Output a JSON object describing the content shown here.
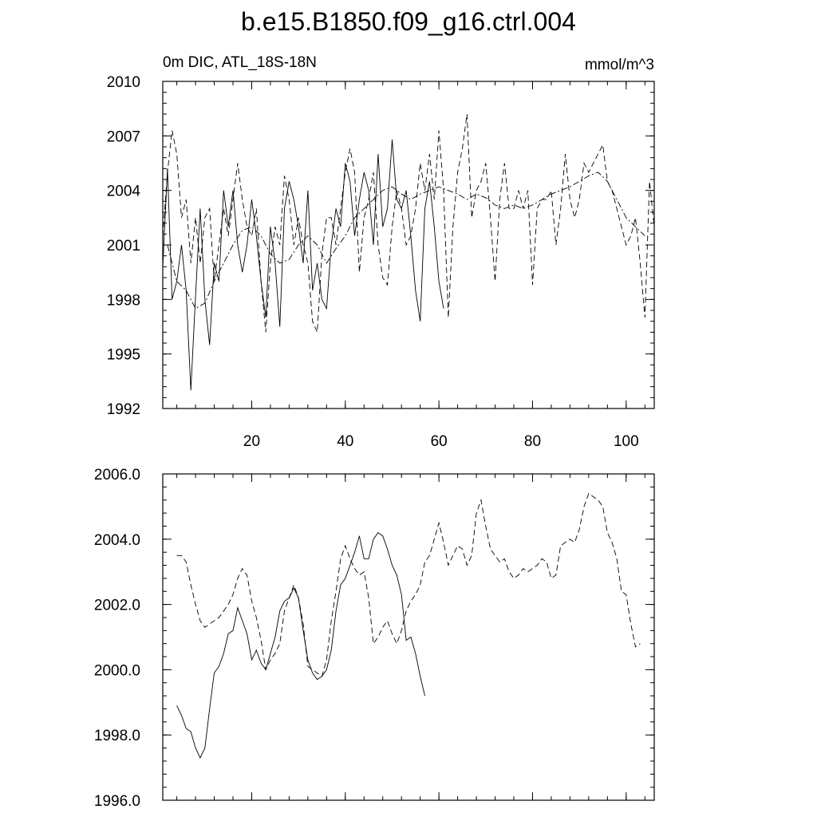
{
  "figure_title": "b.e15.B1850.f09_g16.ctrl.004",
  "chart_data": [
    {
      "type": "line",
      "subtitle_left": "0m DIC, ATL_18S-18N",
      "subtitle_right": "mmol/m^3",
      "xlim": [
        1,
        106
      ],
      "ylim": [
        1992,
        2010
      ],
      "xticks": [
        20,
        40,
        60,
        80,
        100
      ],
      "xtick_labels": [
        "20",
        "40",
        "60",
        "80",
        "100"
      ],
      "yticks": [
        1992,
        1995,
        1998,
        2001,
        2004,
        2007,
        2010
      ],
      "ytick_labels": [
        "1992",
        "1995",
        "1998",
        "2001",
        "2004",
        "2007",
        "2010"
      ],
      "grid": false,
      "series": [
        {
          "style": "solid",
          "x": [
            1,
            2,
            3,
            4,
            5,
            6,
            7,
            8,
            9,
            10,
            11,
            12,
            13,
            14,
            15,
            16,
            17,
            18,
            19,
            20,
            21,
            22,
            23,
            24,
            25,
            26,
            27,
            28,
            29,
            30,
            31,
            32,
            33,
            34,
            35,
            36,
            37,
            38,
            39,
            40,
            41,
            42,
            43,
            44,
            45,
            46,
            47,
            48,
            49,
            50,
            51,
            52,
            53,
            54,
            55,
            56,
            57,
            58,
            59,
            60,
            61
          ],
          "y": [
            1999.8,
            2005.2,
            1998.0,
            1999.0,
            2001.0,
            1998.5,
            1993.0,
            1998.2,
            2003.0,
            1998.0,
            1995.5,
            2000.0,
            1999.0,
            2004.0,
            2002.0,
            2004.0,
            2001.0,
            1999.5,
            2001.0,
            2003.5,
            2001.5,
            1999.0,
            1997.0,
            2002.0,
            2000.0,
            1996.5,
            2003.0,
            2004.5,
            2003.5,
            2002.0,
            2000.0,
            2004.0,
            1998.5,
            2000.0,
            1998.0,
            1997.5,
            2001.0,
            2003.0,
            2002.0,
            2005.5,
            2004.5,
            2001.5,
            2003.5,
            2005.0,
            2004.0,
            2001.0,
            2006.0,
            2002.0,
            2003.0,
            2006.8,
            2003.5,
            2003.0,
            2004.0,
            2001.5,
            1998.5,
            1996.8,
            2003.0,
            2004.5,
            2002.0,
            1999.0,
            1997.5
          ]
        },
        {
          "style": "dashed",
          "x": [
            1,
            2,
            3,
            4,
            5,
            6,
            7,
            8,
            9,
            10,
            11,
            12,
            13,
            14,
            15,
            16,
            17,
            18,
            19,
            20,
            21,
            22,
            23,
            24,
            25,
            26,
            27,
            28,
            29,
            30,
            31,
            32,
            33,
            34,
            35,
            36,
            37,
            38,
            39,
            40,
            41,
            42,
            43,
            44,
            45,
            46,
            47,
            48,
            49,
            50,
            51,
            52,
            53,
            54,
            55,
            56,
            57,
            58,
            59,
            60,
            61,
            62,
            63,
            64,
            65,
            66,
            67,
            68,
            69,
            70,
            71,
            72,
            73,
            74,
            75,
            76,
            77,
            78,
            79,
            80,
            81,
            82,
            83,
            84,
            85,
            86,
            87,
            88,
            89,
            90,
            91,
            92,
            93,
            94,
            95,
            96,
            97,
            98,
            99,
            100,
            101,
            102,
            103,
            104,
            105,
            106
          ],
          "y": [
            2001.5,
            2005.0,
            2007.3,
            2006.0,
            2002.5,
            2003.5,
            2000.0,
            2002.5,
            2000.0,
            2002.5,
            2003.0,
            1999.0,
            2001.0,
            2003.0,
            2001.5,
            2003.5,
            2005.5,
            2003.5,
            2002.0,
            2001.5,
            2003.0,
            1999.0,
            1996.2,
            2000.0,
            2002.0,
            2001.0,
            2004.8,
            2003.5,
            2001.0,
            2002.5,
            2001.0,
            2000.0,
            1996.8,
            1996.2,
            2000.5,
            2002.5,
            2002.5,
            2001.0,
            2003.0,
            2005.0,
            2006.3,
            2005.0,
            1999.5,
            2002.5,
            2003.5,
            2005.0,
            2001.0,
            1999.2,
            1998.8,
            2002.0,
            2004.0,
            2003.0,
            2001.0,
            2001.5,
            2003.0,
            2005.5,
            2004.0,
            2006.0,
            2003.5,
            2007.3,
            2004.0,
            1997.0,
            2002.0,
            2005.0,
            2006.3,
            2008.2,
            2002.5,
            2004.0,
            2004.5,
            2005.5,
            2002.5,
            1999.0,
            2003.5,
            2005.5,
            2003.0,
            2003.0,
            2004.0,
            2003.0,
            2004.0,
            1998.8,
            2003.0,
            2003.5,
            2003.5,
            2004.0,
            2001.0,
            2003.0,
            2006.0,
            2003.5,
            2002.5,
            2003.5,
            2005.5,
            2005.0,
            2005.5,
            2006.0,
            2006.5,
            2004.5,
            2004.0,
            2003.0,
            2002.0,
            2001.0,
            2001.5,
            2002.5,
            2000.0,
            1997.0,
            2004.5,
            2002.0
          ]
        },
        {
          "style": "dash-dot",
          "x": [
            2,
            4,
            6,
            8,
            10,
            12,
            14,
            16,
            18,
            20,
            22,
            24,
            26,
            28,
            30,
            32,
            34,
            36,
            38,
            40,
            42,
            44,
            46,
            48,
            50,
            52,
            54,
            56,
            58,
            60,
            62,
            64,
            66,
            68,
            70,
            72,
            74,
            76,
            78,
            80,
            82,
            84,
            86,
            88,
            90,
            92,
            94,
            96,
            98,
            100,
            102,
            104
          ],
          "y": [
            2001.0,
            1999.0,
            1998.5,
            1997.5,
            1997.8,
            1999.0,
            2000.0,
            2001.0,
            2001.8,
            2002.0,
            2001.5,
            2000.5,
            2000.0,
            2000.2,
            2001.0,
            2001.5,
            2001.0,
            2000.0,
            2000.8,
            2001.5,
            2002.5,
            2003.0,
            2003.5,
            2004.0,
            2004.2,
            2003.8,
            2003.5,
            2003.8,
            2004.0,
            2004.2,
            2004.0,
            2003.8,
            2003.5,
            2003.8,
            2003.6,
            2003.2,
            2003.0,
            2003.2,
            2003.0,
            2003.2,
            2003.5,
            2003.8,
            2004.0,
            2004.2,
            2004.5,
            2004.8,
            2005.0,
            2004.5,
            2003.5,
            2002.5,
            2002.0,
            2001.5
          ]
        }
      ]
    },
    {
      "type": "line",
      "xlim": [
        1,
        106
      ],
      "ylim": [
        1996.0,
        2006.0
      ],
      "xticks": [
        20,
        40,
        60,
        80,
        100
      ],
      "yticks": [
        1996.0,
        1998.0,
        2000.0,
        2002.0,
        2004.0,
        2006.0
      ],
      "ytick_labels": [
        "1996.0",
        "1998.0",
        "2000.0",
        "2002.0",
        "2004.0",
        "2006.0"
      ],
      "grid": false,
      "series": [
        {
          "style": "solid",
          "x": [
            4,
            5,
            6,
            7,
            8,
            9,
            10,
            11,
            12,
            13,
            14,
            15,
            16,
            17,
            18,
            19,
            20,
            21,
            22,
            23,
            24,
            25,
            26,
            27,
            28,
            29,
            30,
            31,
            32,
            33,
            34,
            35,
            36,
            37,
            38,
            39,
            40,
            41,
            42,
            43,
            44,
            45,
            46,
            47,
            48,
            49,
            50,
            51,
            52,
            53,
            54,
            55,
            56,
            57
          ],
          "y": [
            1998.9,
            1998.6,
            1998.2,
            1998.1,
            1997.6,
            1997.3,
            1997.6,
            1998.8,
            1999.9,
            2000.1,
            2000.5,
            2001.1,
            2001.2,
            2001.9,
            2001.5,
            2001.1,
            2000.3,
            2000.6,
            2000.2,
            2000.0,
            2000.5,
            2001.0,
            2001.8,
            2002.1,
            2002.2,
            2002.5,
            2002.2,
            2001.2,
            2000.3,
            1999.9,
            1999.7,
            1999.8,
            2000.0,
            2000.6,
            2001.8,
            2002.6,
            2002.8,
            2003.2,
            2003.6,
            2004.1,
            2003.4,
            2003.4,
            2004.0,
            2004.2,
            2004.1,
            2003.7,
            2003.2,
            2002.9,
            2002.3,
            2000.9,
            2001.0,
            2000.5,
            1999.8,
            1999.2
          ]
        },
        {
          "style": "dashed",
          "x": [
            4,
            5,
            6,
            7,
            8,
            9,
            10,
            11,
            12,
            13,
            14,
            15,
            16,
            17,
            18,
            19,
            20,
            21,
            22,
            23,
            24,
            25,
            26,
            27,
            28,
            29,
            30,
            31,
            32,
            33,
            34,
            35,
            36,
            37,
            38,
            39,
            40,
            41,
            42,
            43,
            44,
            45,
            46,
            47,
            48,
            49,
            50,
            51,
            52,
            53,
            54,
            55,
            56,
            57,
            58,
            59,
            60,
            61,
            62,
            63,
            64,
            65,
            66,
            67,
            68,
            69,
            70,
            71,
            72,
            73,
            74,
            75,
            76,
            77,
            78,
            79,
            80,
            81,
            82,
            83,
            84,
            85,
            86,
            87,
            88,
            89,
            90,
            91,
            92,
            93,
            94,
            95,
            96,
            97,
            98,
            99,
            100,
            101,
            102,
            103
          ],
          "y": [
            2003.5,
            2003.5,
            2003.3,
            2002.6,
            2002.0,
            2001.5,
            2001.3,
            2001.4,
            2001.5,
            2001.6,
            2001.8,
            2002.0,
            2002.3,
            2002.8,
            2003.1,
            2002.9,
            2002.1,
            2001.6,
            2000.9,
            2000.0,
            2000.3,
            2000.5,
            2000.8,
            2001.8,
            2002.2,
            2002.6,
            2002.2,
            2001.4,
            2000.1,
            2000.0,
            1999.9,
            1999.8,
            2000.3,
            2001.5,
            2002.4,
            2003.4,
            2003.8,
            2003.4,
            2003.1,
            2002.9,
            2003.0,
            2002.2,
            2000.8,
            2001.0,
            2001.3,
            2001.5,
            2001.1,
            2000.8,
            2001.2,
            2001.8,
            2002.1,
            2002.3,
            2002.6,
            2003.3,
            2003.5,
            2004.0,
            2004.5,
            2003.9,
            2003.2,
            2003.5,
            2003.8,
            2003.7,
            2003.2,
            2003.5,
            2004.8,
            2005.2,
            2004.4,
            2003.7,
            2003.5,
            2003.3,
            2003.4,
            2003.0,
            2002.8,
            2002.9,
            2003.1,
            2003.0,
            2003.1,
            2003.2,
            2003.4,
            2003.3,
            2002.8,
            2002.9,
            2003.8,
            2003.9,
            2004.0,
            2003.9,
            2004.3,
            2005.0,
            2005.4,
            2005.3,
            2005.2,
            2005.0,
            2004.2,
            2003.9,
            2003.4,
            2002.4,
            2002.3,
            2001.4,
            2000.7,
            2000.8
          ]
        }
      ]
    }
  ]
}
